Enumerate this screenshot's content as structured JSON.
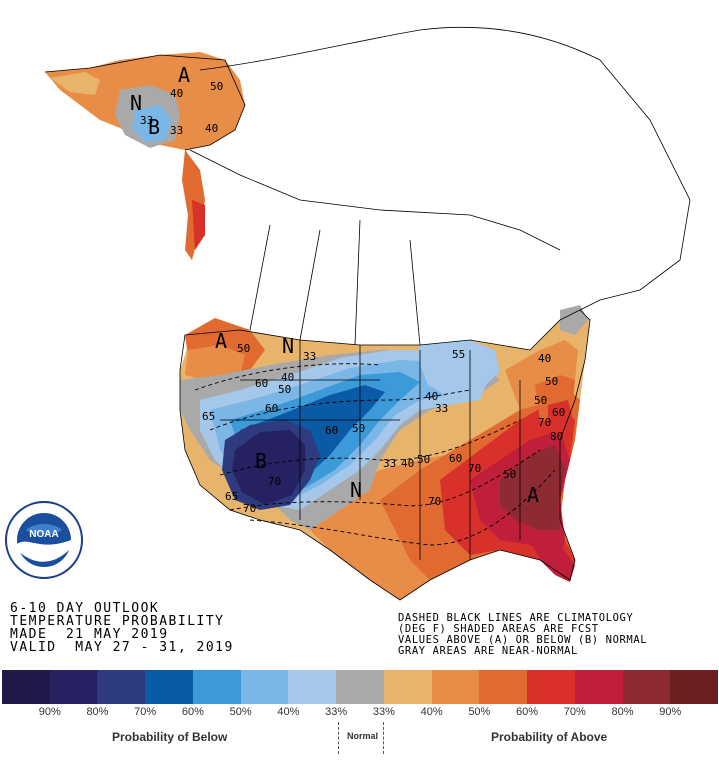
{
  "title": {
    "line1": "6-10 DAY OUTLOOK",
    "line2": "TEMPERATURE PROBABILITY",
    "line3": "MADE  21 MAY 2019",
    "line4": "VALID  MAY 27 - 31, 2019"
  },
  "note": {
    "line1": "DASHED BLACK LINES ARE CLIMATOLOGY",
    "line2": "(DEG F) SHADED AREAS ARE FCST",
    "line3": "VALUES ABOVE (A) OR BELOW (B) NORMAL",
    "line4": "GRAY AREAS ARE NEAR-NORMAL"
  },
  "map_labels": {
    "A": "A",
    "B": "B",
    "N": "N",
    "v33": "33",
    "v40": "40",
    "v50": "50",
    "v55": "55",
    "v60": "60",
    "v65": "65",
    "v70": "70",
    "v80": "80"
  },
  "noaa_logo_text": "NOAA",
  "legend": {
    "colors": [
      "#1f1a4a",
      "#262161",
      "#2e3b7e",
      "#0a5aa6",
      "#3d9ad9",
      "#7ab6e6",
      "#a4c7ea",
      "#a9a9a9",
      "#e8b46c",
      "#e88d47",
      "#e06a30",
      "#d8302a",
      "#c01f3c",
      "#8e2a33",
      "#6e1f22"
    ],
    "ticks": [
      "90%",
      "80%",
      "70%",
      "60%",
      "50%",
      "40%",
      "33%",
      "33%",
      "40%",
      "50%",
      "60%",
      "70%",
      "80%",
      "90%"
    ],
    "below_label": "Probability of Below",
    "normal_label": "Normal",
    "above_label": "Probability of Above"
  }
}
